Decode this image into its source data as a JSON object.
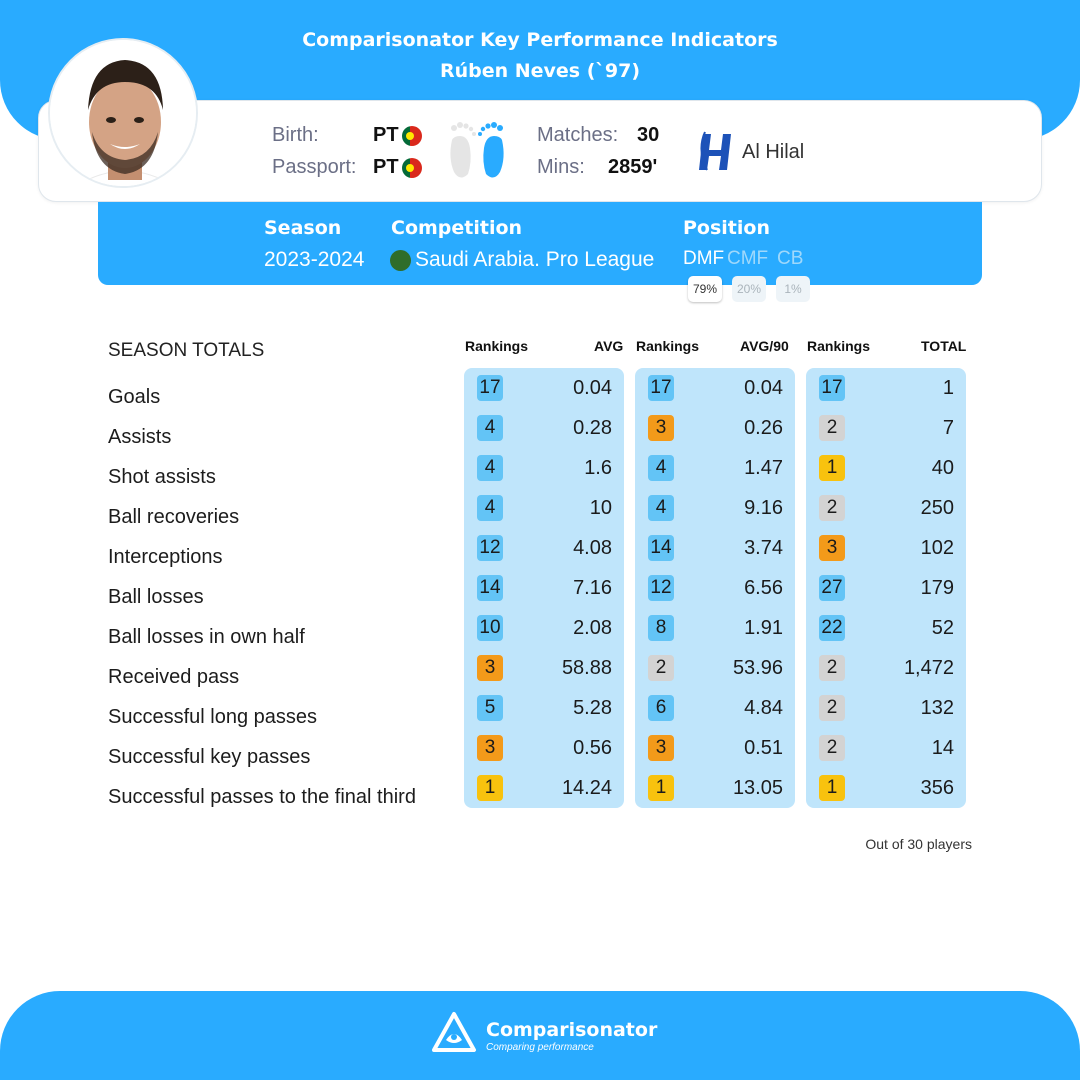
{
  "header": {
    "title": "Comparisonator Key Performance Indicators",
    "player": "Rúben Neves (`97)"
  },
  "player_card": {
    "birth_label": "Birth:",
    "birth_value": "PT",
    "passport_label": "Passport:",
    "passport_value": "PT",
    "matches_label": "Matches:",
    "matches_value": "30",
    "mins_label": "Mins:",
    "mins_value": "2859'",
    "club": "Al Hilal",
    "colors": {
      "flag_green": "#046a38",
      "flag_red": "#da291c",
      "club_blue": "#1d52b8"
    }
  },
  "season": {
    "season_label": "Season",
    "season_value": "2023-2024",
    "competition_label": "Competition",
    "competition_value": "Saudi Arabia. Pro League",
    "position_label": "Position",
    "positions": [
      {
        "name": "DMF",
        "pct": "79%"
      },
      {
        "name": "CMF",
        "pct": "20%"
      },
      {
        "name": "CB",
        "pct": "1%"
      }
    ]
  },
  "table": {
    "title": "SEASON TOTALS",
    "columns": [
      "Rankings",
      "AVG",
      "Rankings",
      "AVG/90",
      "Rankings",
      "TOTAL"
    ],
    "rows": [
      {
        "label": "Goals",
        "r1": "17",
        "avg": "0.04",
        "r2": "17",
        "avg90": "0.04",
        "r3": "17",
        "total": "1"
      },
      {
        "label": "Assists",
        "r1": "4",
        "avg": "0.28",
        "r2": "3",
        "avg90": "0.26",
        "r3": "2",
        "total": "7"
      },
      {
        "label": "Shot assists",
        "r1": "4",
        "avg": "1.6",
        "r2": "4",
        "avg90": "1.47",
        "r3": "1",
        "total": "40"
      },
      {
        "label": "Ball recoveries",
        "r1": "4",
        "avg": "10",
        "r2": "4",
        "avg90": "9.16",
        "r3": "2",
        "total": "250"
      },
      {
        "label": "Interceptions",
        "r1": "12",
        "avg": "4.08",
        "r2": "14",
        "avg90": "3.74",
        "r3": "3",
        "total": "102"
      },
      {
        "label": "Ball losses",
        "r1": "14",
        "avg": "7.16",
        "r2": "12",
        "avg90": "6.56",
        "r3": "27",
        "total": "179"
      },
      {
        "label": "Ball losses in own half",
        "r1": "10",
        "avg": "2.08",
        "r2": "8",
        "avg90": "1.91",
        "r3": "22",
        "total": "52"
      },
      {
        "label": "Received pass",
        "r1": "3",
        "avg": "58.88",
        "r2": "2",
        "avg90": "53.96",
        "r3": "2",
        "total": "1,472"
      },
      {
        "label": "Successful long passes",
        "r1": "5",
        "avg": "5.28",
        "r2": "6",
        "avg90": "4.84",
        "r3": "2",
        "total": "132"
      },
      {
        "label": "Successful key passes",
        "r1": "3",
        "avg": "0.56",
        "r2": "3",
        "avg90": "0.51",
        "r3": "2",
        "total": "14"
      },
      {
        "label": "Successful passes to the final third",
        "r1": "1",
        "avg": "14.24",
        "r2": "1",
        "avg90": "13.05",
        "r3": "1",
        "total": "356"
      }
    ],
    "footnote": "Out of 30 players"
  },
  "rank_colors": {
    "1": "#f8c20e",
    "2": "#d3d3d3",
    "3": "#f39a1a",
    "other": "#63c4f6"
  },
  "footer": {
    "brand": "Comparisonator",
    "tagline": "Comparing performance"
  },
  "theme": {
    "primary": "#29abff",
    "panel": "#bfe5fb"
  }
}
